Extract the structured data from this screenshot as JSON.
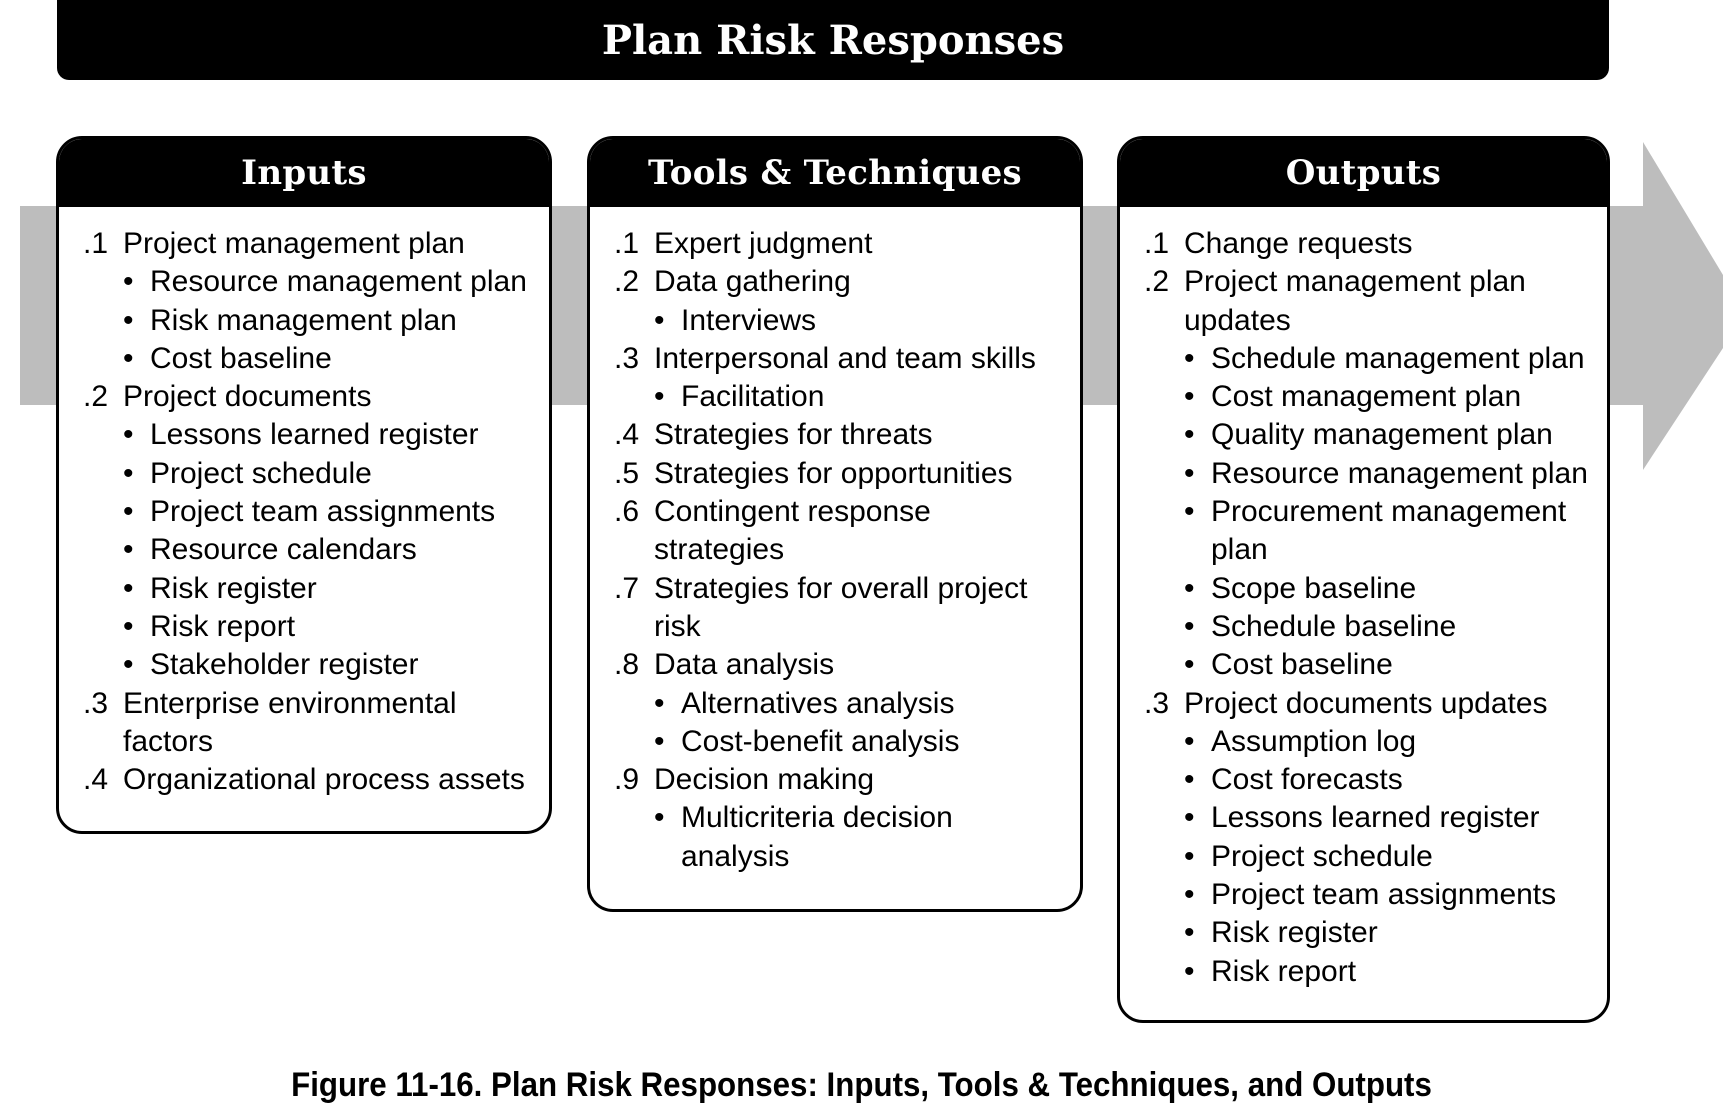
{
  "title": "Plan Risk Responses",
  "caption": "Figure 11-16. Plan Risk Responses: Inputs, Tools & Techniques, and Outputs",
  "colors": {
    "header": "#000000",
    "arrow": "#bdbdbd",
    "background": "#ffffff"
  },
  "inputs": {
    "title": "Inputs",
    "items": [
      {
        "num": ".1",
        "text": "Project management plan",
        "bullets": [
          "Resource management plan",
          "Risk management plan",
          "Cost baseline"
        ]
      },
      {
        "num": ".2",
        "text": "Project documents",
        "bullets": [
          "Lessons learned register",
          "Project schedule",
          "Project team assignments",
          "Resource calendars",
          "Risk register",
          "Risk report",
          "Stakeholder register"
        ]
      },
      {
        "num": ".3",
        "text": "Enterprise environmental factors",
        "bullets": []
      },
      {
        "num": ".4",
        "text": "Organizational process assets",
        "bullets": []
      }
    ]
  },
  "tools": {
    "title": "Tools & Techniques",
    "items": [
      {
        "num": ".1",
        "text": "Expert judgment",
        "bullets": []
      },
      {
        "num": ".2",
        "text": "Data gathering",
        "bullets": [
          "Interviews"
        ]
      },
      {
        "num": ".3",
        "text": "Interpersonal and team skills",
        "bullets": [
          "Facilitation"
        ]
      },
      {
        "num": ".4",
        "text": "Strategies for threats",
        "bullets": []
      },
      {
        "num": ".5",
        "text": "Strategies for opportunities",
        "bullets": []
      },
      {
        "num": ".6",
        "text": "Contingent response strategies",
        "bullets": []
      },
      {
        "num": ".7",
        "text": "Strategies for overall project risk",
        "bullets": []
      },
      {
        "num": ".8",
        "text": "Data analysis",
        "bullets": [
          "Alternatives analysis",
          "Cost-benefit analysis"
        ]
      },
      {
        "num": ".9",
        "text": "Decision making",
        "bullets": [
          "Multicriteria decision analysis"
        ]
      }
    ]
  },
  "outputs": {
    "title": "Outputs",
    "items": [
      {
        "num": ".1",
        "text": "Change requests",
        "bullets": []
      },
      {
        "num": ".2",
        "text": "Project management plan updates",
        "bullets": [
          "Schedule management plan",
          "Cost management plan",
          "Quality management plan",
          "Resource management plan",
          "Procurement management plan",
          "Scope baseline",
          "Schedule baseline",
          "Cost baseline"
        ]
      },
      {
        "num": ".3",
        "text": "Project documents updates",
        "bullets": [
          "Assumption log",
          "Cost forecasts",
          "Lessons learned register",
          "Project schedule",
          "Project team assignments",
          "Risk register",
          "Risk report"
        ]
      }
    ]
  }
}
